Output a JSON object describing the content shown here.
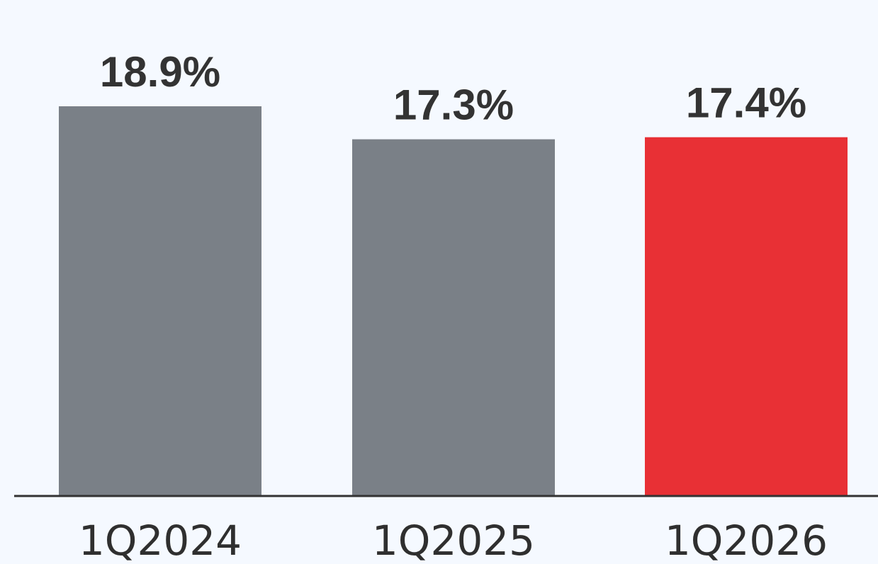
{
  "chart_data": {
    "type": "bar",
    "title": "",
    "xlabel": "",
    "ylabel": "",
    "categories": [
      "1Q2024",
      "1Q2025",
      "1Q2026"
    ],
    "values": [
      18.9,
      17.3,
      17.4
    ],
    "value_labels": [
      "18.9%",
      "17.3%",
      "17.4%"
    ],
    "ylim": [
      0,
      20
    ],
    "grid": false,
    "legend": "none",
    "colors": [
      "#7a8087",
      "#7a8087",
      "#e83035"
    ]
  }
}
